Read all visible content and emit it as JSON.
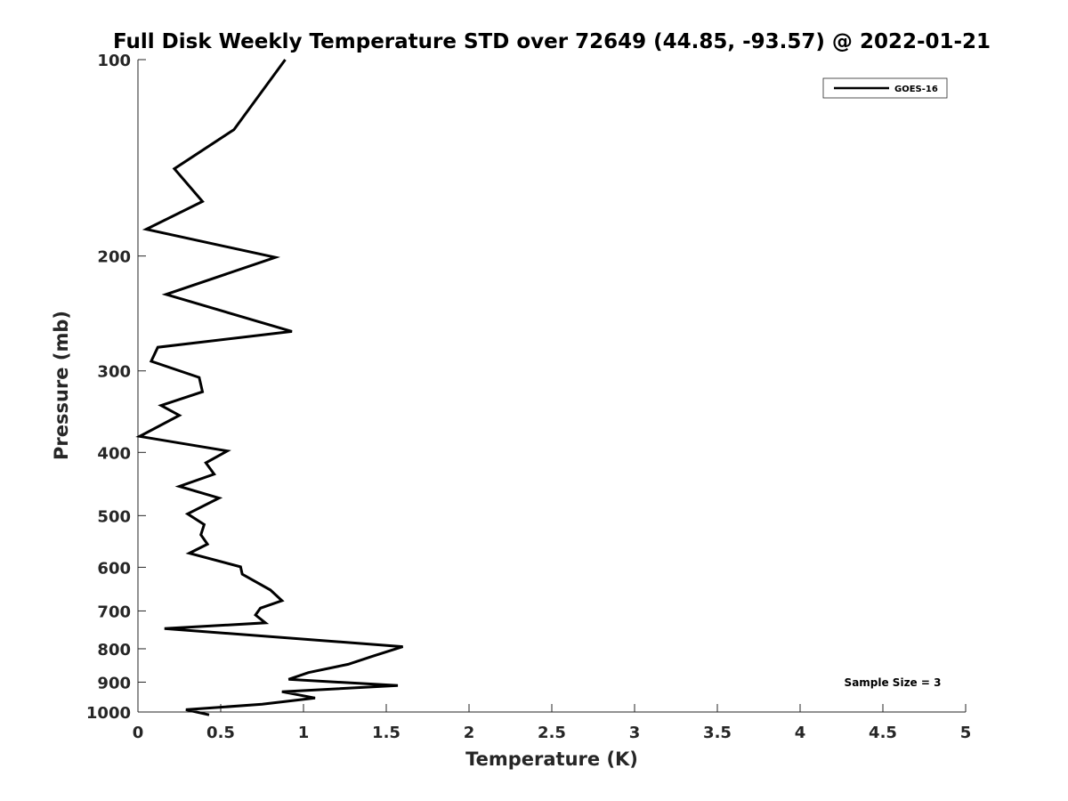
{
  "chart_data": {
    "type": "line",
    "title": "Full Disk Weekly Temperature STD over 72649 (44.85, -93.57) @ 2022-01-21",
    "xlabel": "Temperature (K)",
    "ylabel": "Pressure (mb)",
    "xlim": [
      0,
      5
    ],
    "ylim": [
      100,
      1000
    ],
    "y_scale": "log",
    "y_reversed": true,
    "grid": false,
    "legend_position": "top-right",
    "xticks": [
      "0",
      "0.5",
      "1",
      "1.5",
      "2",
      "2.5",
      "3",
      "3.5",
      "4",
      "4.5",
      "5"
    ],
    "yticks": [
      "100",
      "200",
      "300",
      "400",
      "500",
      "600",
      "700",
      "800",
      "900",
      "1000"
    ],
    "annotation": "Sample Size = 3",
    "series": [
      {
        "name": "GOES-16",
        "color": "#000000",
        "x": [
          0.89,
          0.58,
          0.22,
          0.39,
          0.05,
          0.83,
          0.17,
          0.93,
          0.12,
          0.08,
          0.37,
          0.39,
          0.14,
          0.25,
          0.01,
          0.54,
          0.41,
          0.46,
          0.25,
          0.49,
          0.3,
          0.4,
          0.38,
          0.42,
          0.31,
          0.62,
          0.63,
          0.8,
          0.87,
          0.74,
          0.71,
          0.77,
          0.16,
          1.6,
          1.42,
          1.27,
          1.03,
          0.91,
          1.57,
          0.87,
          1.07,
          0.75,
          0.29,
          0.43
        ],
        "y": [
          100,
          128,
          147,
          165,
          182,
          201,
          229,
          261,
          276,
          290,
          307,
          323,
          339,
          351,
          378,
          398,
          415,
          432,
          451,
          470,
          497,
          516,
          535,
          553,
          571,
          599,
          615,
          650,
          675,
          693,
          710,
          730,
          745,
          794,
          821,
          845,
          870,
          891,
          911,
          931,
          952,
          973,
          992,
          1010
        ]
      }
    ]
  }
}
